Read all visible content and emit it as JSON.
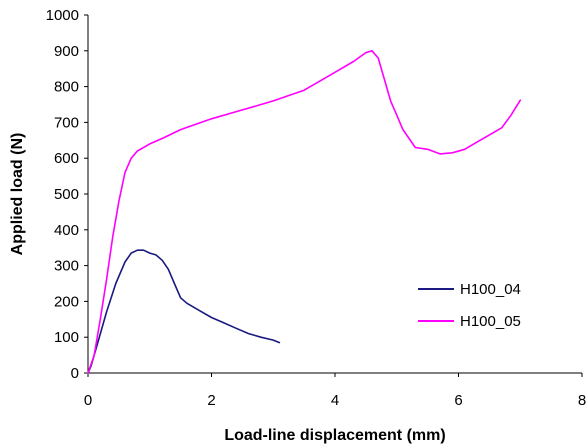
{
  "chart_data": {
    "type": "line",
    "title": "",
    "xlabel": "Load-line displacement (mm)",
    "ylabel": "Applied load (N)",
    "xlim": [
      0,
      8
    ],
    "ylim": [
      0,
      1000
    ],
    "x_ticks": [
      "0",
      "2",
      "4",
      "6",
      "8"
    ],
    "y_ticks": [
      "0",
      "100",
      "200",
      "300",
      "400",
      "500",
      "600",
      "700",
      "800",
      "900",
      "1000"
    ],
    "grid": false,
    "legend": "center-right",
    "series": [
      {
        "name": "H100_04",
        "color": "#1a1a80",
        "points": [
          [
            0,
            0
          ],
          [
            0.05,
            20
          ],
          [
            0.15,
            80
          ],
          [
            0.3,
            170
          ],
          [
            0.45,
            250
          ],
          [
            0.6,
            310
          ],
          [
            0.7,
            335
          ],
          [
            0.8,
            343
          ],
          [
            0.9,
            343
          ],
          [
            1.0,
            335
          ],
          [
            1.1,
            330
          ],
          [
            1.2,
            315
          ],
          [
            1.3,
            290
          ],
          [
            1.4,
            250
          ],
          [
            1.5,
            210
          ],
          [
            1.6,
            195
          ],
          [
            1.8,
            175
          ],
          [
            2.0,
            155
          ],
          [
            2.2,
            140
          ],
          [
            2.4,
            125
          ],
          [
            2.6,
            110
          ],
          [
            2.8,
            100
          ],
          [
            3.0,
            92
          ],
          [
            3.1,
            85
          ]
        ]
      },
      {
        "name": "H100_05",
        "color": "#ff00ff",
        "points": [
          [
            0,
            0
          ],
          [
            0.1,
            50
          ],
          [
            0.2,
            150
          ],
          [
            0.3,
            260
          ],
          [
            0.4,
            380
          ],
          [
            0.5,
            480
          ],
          [
            0.6,
            560
          ],
          [
            0.7,
            600
          ],
          [
            0.8,
            620
          ],
          [
            1.0,
            640
          ],
          [
            1.2,
            655
          ],
          [
            1.5,
            680
          ],
          [
            2.0,
            710
          ],
          [
            2.5,
            735
          ],
          [
            3.0,
            760
          ],
          [
            3.5,
            790
          ],
          [
            4.0,
            840
          ],
          [
            4.3,
            870
          ],
          [
            4.5,
            895
          ],
          [
            4.6,
            900
          ],
          [
            4.7,
            880
          ],
          [
            4.8,
            820
          ],
          [
            4.9,
            760
          ],
          [
            5.0,
            720
          ],
          [
            5.1,
            680
          ],
          [
            5.2,
            655
          ],
          [
            5.3,
            630
          ],
          [
            5.5,
            625
          ],
          [
            5.7,
            612
          ],
          [
            5.9,
            615
          ],
          [
            6.1,
            625
          ],
          [
            6.3,
            645
          ],
          [
            6.5,
            665
          ],
          [
            6.7,
            685
          ],
          [
            6.85,
            720
          ],
          [
            7.0,
            762
          ]
        ]
      }
    ]
  }
}
